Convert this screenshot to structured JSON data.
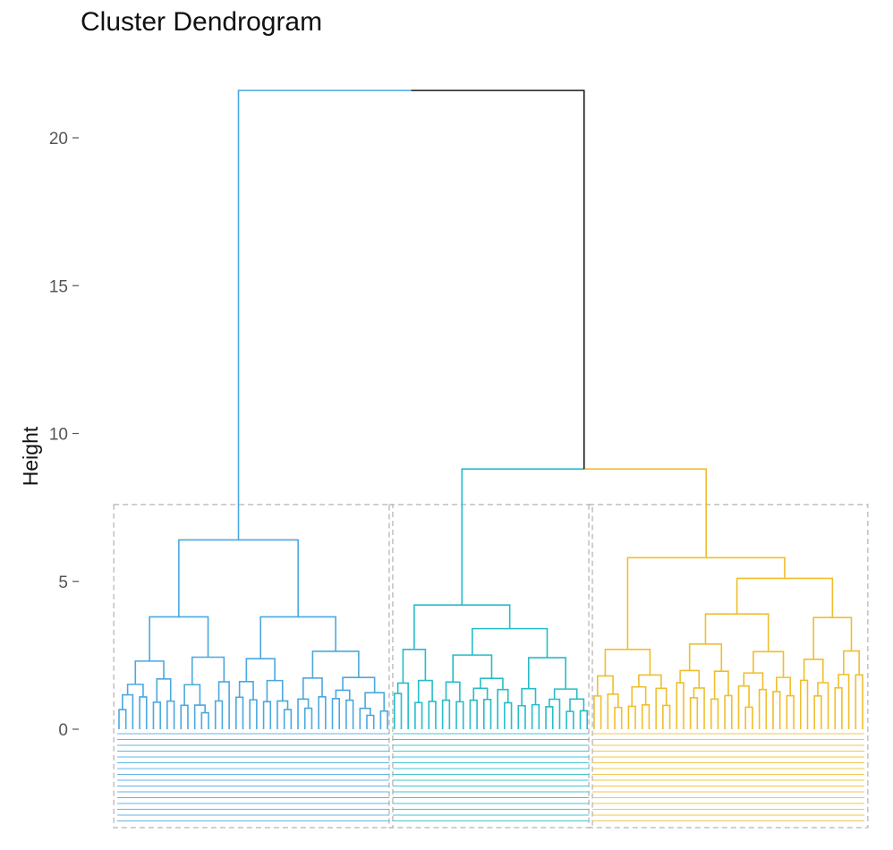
{
  "chart_data": {
    "type": "dendrogram",
    "title": "Cluster Dendrogram",
    "xlabel": "",
    "ylabel": "Height",
    "ylim": [
      0,
      22
    ],
    "yticks": [
      0,
      5,
      10,
      15,
      20
    ],
    "grid": false,
    "root_height": 21.6,
    "colors": {
      "root": "#1a1a1a",
      "cluster1": "#4aa8e0",
      "cluster2": "#26bcc8",
      "cluster3": "#f0be2c",
      "rect": "#c0c0c0"
    },
    "cut_height": 7.6,
    "cluster_merge_height": 8.8,
    "clusters": [
      {
        "color_key": "cluster1",
        "leaf_count": 40,
        "top_height": 6.4,
        "subgroups": [
          {
            "height": 3.8,
            "leaves": 17
          },
          {
            "height": 3.8,
            "leaves": 23
          }
        ]
      },
      {
        "color_key": "cluster2",
        "leaf_count": 29,
        "top_height": 4.2,
        "subgroups": [
          {
            "height": 2.7,
            "leaves": 7
          },
          {
            "height": 3.4,
            "leaves": 22
          }
        ]
      },
      {
        "color_key": "cluster3",
        "leaf_count": 40,
        "top_height": 5.8,
        "subgroups": [
          {
            "height": 2.7,
            "leaves": 12
          },
          {
            "height": 5.1,
            "leaves": 28
          }
        ]
      }
    ]
  }
}
